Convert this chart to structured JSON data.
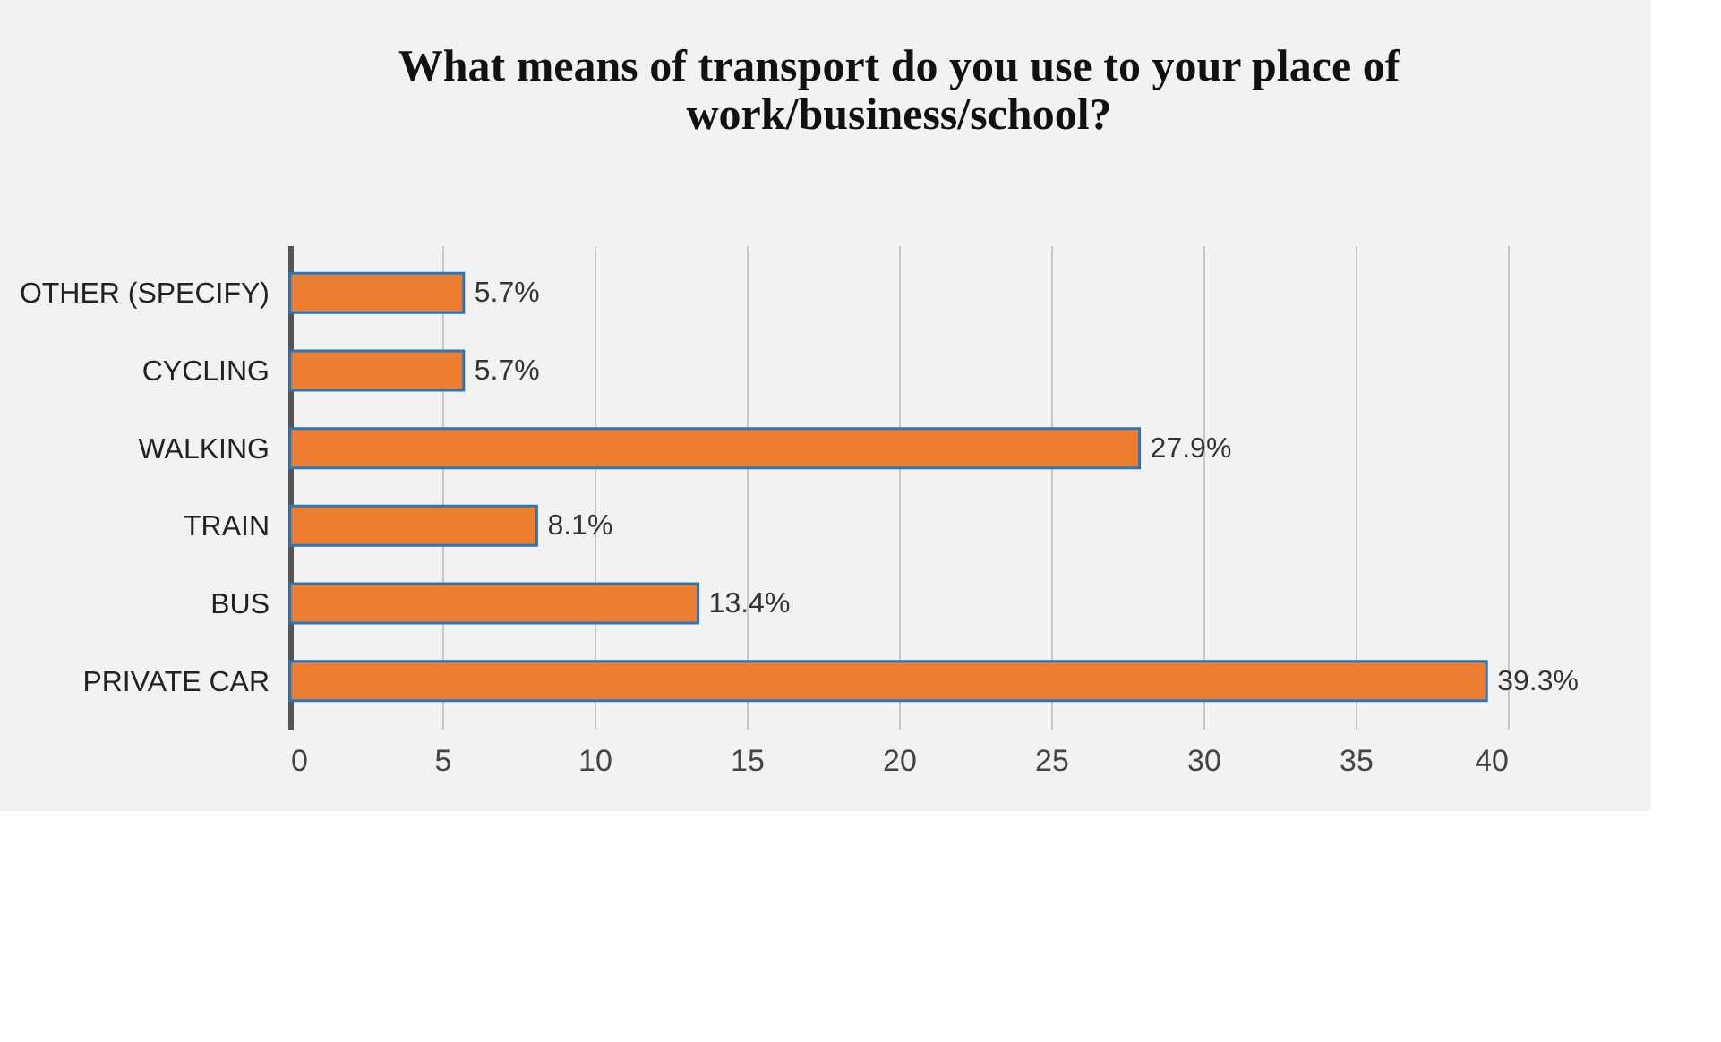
{
  "chart_data": {
    "type": "bar",
    "orientation": "horizontal",
    "title": "What means of transport do you use to your place of work/business/school?",
    "categories": [
      "OTHER (SPECIFY)",
      "CYCLING",
      "WALKING",
      "TRAIN",
      "BUS",
      "PRIVATE CAR"
    ],
    "values": [
      5.7,
      5.7,
      27.9,
      8.1,
      13.4,
      39.3
    ],
    "value_labels": [
      "5.7%",
      "5.7%",
      "27.9%",
      "8.1%",
      "13.4%",
      "39.3%"
    ],
    "color": "#ed7d31",
    "xlim": [
      0,
      40
    ],
    "xticks": [
      0,
      5,
      10,
      15,
      20,
      25,
      30,
      35,
      40
    ],
    "grid": "x"
  }
}
